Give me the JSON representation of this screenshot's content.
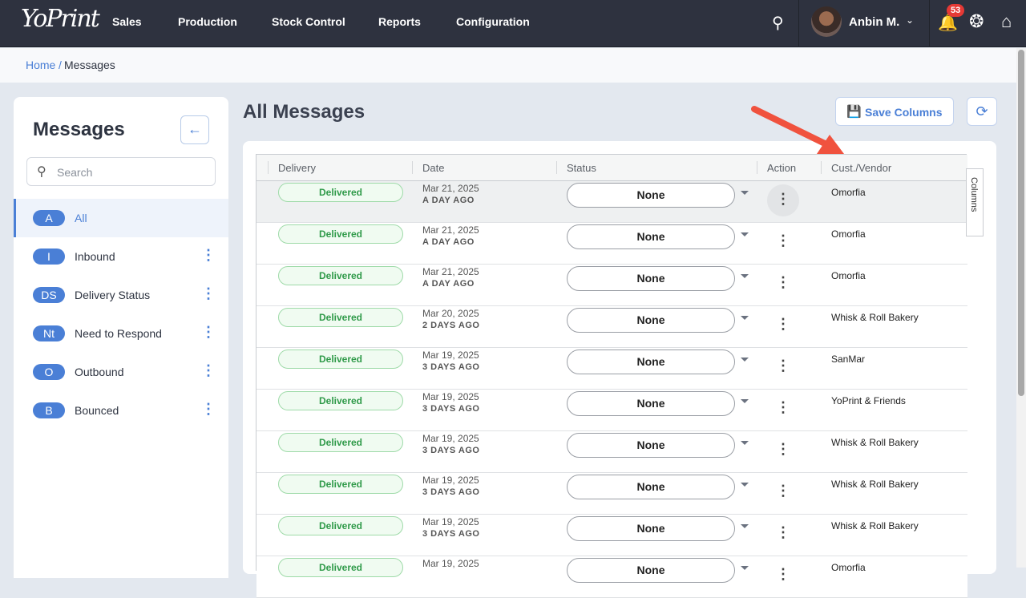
{
  "nav": {
    "logo": "YoPrint",
    "items": [
      "Sales",
      "Production",
      "Stock Control",
      "Reports",
      "Configuration"
    ],
    "user": "Anbin M.",
    "notifications": "53"
  },
  "breadcrumb": {
    "home": "Home",
    "sep": "/",
    "current": "Messages"
  },
  "sidebar": {
    "title": "Messages",
    "search_placeholder": "Search",
    "items": [
      {
        "abbr": "A",
        "label": "All",
        "active": true
      },
      {
        "abbr": "I",
        "label": "Inbound"
      },
      {
        "abbr": "DS",
        "label": "Delivery Status"
      },
      {
        "abbr": "Nt",
        "label": "Need to Respond"
      },
      {
        "abbr": "O",
        "label": "Outbound"
      },
      {
        "abbr": "B",
        "label": "Bounced"
      }
    ]
  },
  "main": {
    "title": "All Messages",
    "save_columns": "Save Columns",
    "columns_label": "Columns",
    "headers": [
      "Delivery",
      "Date",
      "Status",
      "Action",
      "Cust./Vendor"
    ],
    "rows": [
      {
        "delivery": "Delivered",
        "date": "Mar 21, 2025",
        "ago": "A DAY AGO",
        "status": "None",
        "cust": "Omorfia"
      },
      {
        "delivery": "Delivered",
        "date": "Mar 21, 2025",
        "ago": "A DAY AGO",
        "status": "None",
        "cust": "Omorfia"
      },
      {
        "delivery": "Delivered",
        "date": "Mar 21, 2025",
        "ago": "A DAY AGO",
        "status": "None",
        "cust": "Omorfia"
      },
      {
        "delivery": "Delivered",
        "date": "Mar 20, 2025",
        "ago": "2 DAYS AGO",
        "status": "None",
        "cust": "Whisk & Roll Bakery"
      },
      {
        "delivery": "Delivered",
        "date": "Mar 19, 2025",
        "ago": "3 DAYS AGO",
        "status": "None",
        "cust": "SanMar"
      },
      {
        "delivery": "Delivered",
        "date": "Mar 19, 2025",
        "ago": "3 DAYS AGO",
        "status": "None",
        "cust": "YoPrint & Friends"
      },
      {
        "delivery": "Delivered",
        "date": "Mar 19, 2025",
        "ago": "3 DAYS AGO",
        "status": "None",
        "cust": "Whisk & Roll Bakery"
      },
      {
        "delivery": "Delivered",
        "date": "Mar 19, 2025",
        "ago": "3 DAYS AGO",
        "status": "None",
        "cust": "Whisk & Roll Bakery"
      },
      {
        "delivery": "Delivered",
        "date": "Mar 19, 2025",
        "ago": "3 DAYS AGO",
        "status": "None",
        "cust": "Whisk & Roll Bakery"
      },
      {
        "delivery": "Delivered",
        "date": "Mar 19, 2025",
        "ago": "",
        "status": "None",
        "cust": "Omorfia"
      }
    ]
  },
  "colors": {
    "accent": "#4a7fd6",
    "nav_bg": "#2e323f",
    "delivered": "#2f9a49",
    "annotation_arrow": "#f0523e"
  }
}
